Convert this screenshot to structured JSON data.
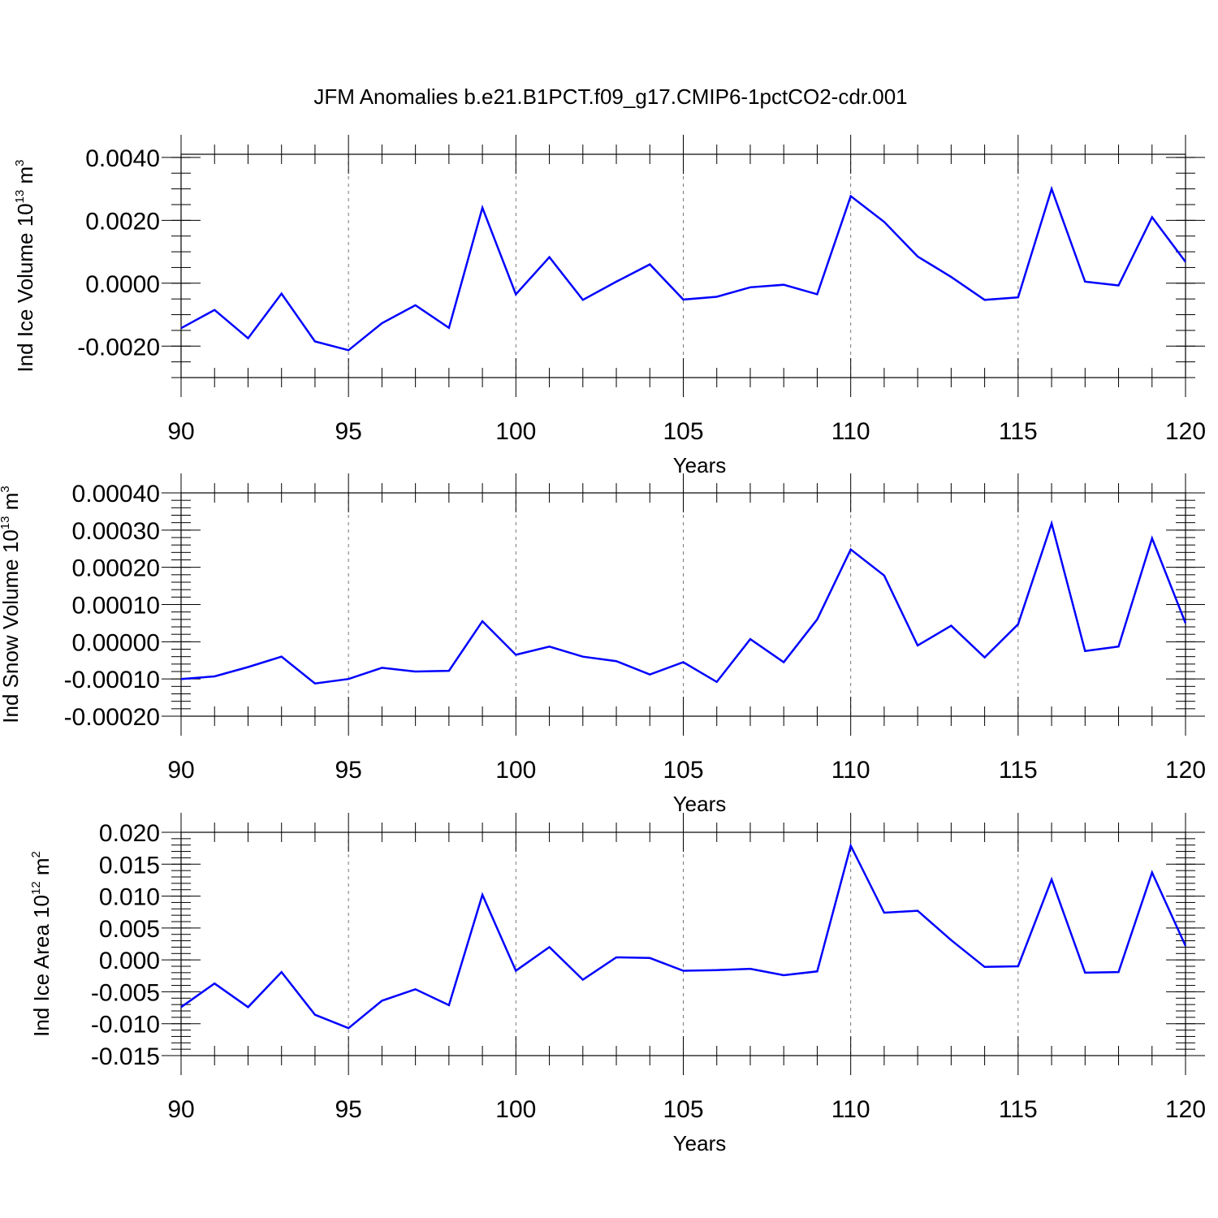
{
  "chart_data": [
    {
      "type": "line",
      "title": "JFM Anomalies b.e21.B1PCT.f09_g17.CMIP6-1pctCO2-cdr.001",
      "xlabel": "Years",
      "ylabel": "Ind Ice Volume 10",
      "ylabel_exp": "13",
      "ylabel_unit": " m",
      "ylabel_unit_exp": "3",
      "xlim": [
        90,
        120
      ],
      "ylim": [
        -0.003,
        0.0041
      ],
      "x": [
        90,
        91,
        92,
        93,
        94,
        95,
        96,
        97,
        98,
        99,
        100,
        101,
        102,
        103,
        104,
        105,
        106,
        107,
        108,
        109,
        110,
        111,
        112,
        113,
        114,
        115,
        116,
        117,
        118,
        119,
        120
      ],
      "y": [
        -0.00143,
        -0.00085,
        -0.00175,
        -0.00033,
        -0.00185,
        -0.00213,
        -0.00127,
        -0.0007,
        -0.00142,
        0.0024,
        -0.00035,
        0.00083,
        -0.00053,
        5e-05,
        0.0006,
        -0.00052,
        -0.00043,
        -0.00013,
        -5e-05,
        -0.00035,
        0.00277,
        0.00195,
        0.00085,
        0.0002,
        -0.00053,
        -0.00045,
        0.003,
        5e-05,
        -7e-05,
        0.0021,
        0.00068
      ],
      "series_color": "#0000ff",
      "xticks": [
        "90",
        "95",
        "100",
        "105",
        "110",
        "115",
        "120"
      ],
      "yticks": [
        "0.0040",
        "0.0020",
        "0.0000",
        "-0.0020"
      ]
    },
    {
      "type": "line",
      "xlabel": "Years",
      "ylabel": "Ind Snow Volume 10",
      "ylabel_exp": "13",
      "ylabel_unit": " m",
      "ylabel_unit_exp": "3",
      "xlim": [
        90,
        120
      ],
      "ylim": [
        -0.0002,
        0.0004
      ],
      "x": [
        90,
        91,
        92,
        93,
        94,
        95,
        96,
        97,
        98,
        99,
        100,
        101,
        102,
        103,
        104,
        105,
        106,
        107,
        108,
        109,
        110,
        111,
        112,
        113,
        114,
        115,
        116,
        117,
        118,
        119,
        120
      ],
      "y": [
        -0.0001,
        -9.3e-05,
        -6.8e-05,
        -4e-05,
        -0.000112,
        -0.0001,
        -7e-05,
        -8e-05,
        -7.8e-05,
        5.5e-05,
        -3.5e-05,
        -1.3e-05,
        -4e-05,
        -5.2e-05,
        -8.8e-05,
        -5.5e-05,
        -0.000108,
        7e-06,
        -5.5e-05,
        6e-05,
        0.000248,
        0.000178,
        -1e-05,
        4.3e-05,
        -4.2e-05,
        4.7e-05,
        0.000318,
        -2.5e-05,
        -1.3e-05,
        0.000278,
        5e-05
      ],
      "series_color": "#0000ff",
      "xticks": [
        "90",
        "95",
        "100",
        "105",
        "110",
        "115",
        "120"
      ],
      "yticks": [
        "0.00040",
        "0.00030",
        "0.00020",
        "0.00010",
        "0.00000",
        "-0.00010",
        "-0.00020"
      ]
    },
    {
      "type": "line",
      "xlabel": "Years",
      "ylabel": "Ind Ice Area 10",
      "ylabel_exp": "12",
      "ylabel_unit": " m",
      "ylabel_unit_exp": "2",
      "xlim": [
        90,
        120
      ],
      "ylim": [
        -0.015,
        0.02
      ],
      "x": [
        90,
        91,
        92,
        93,
        94,
        95,
        96,
        97,
        98,
        99,
        100,
        101,
        102,
        103,
        104,
        105,
        106,
        107,
        108,
        109,
        110,
        111,
        112,
        113,
        114,
        115,
        116,
        117,
        118,
        119,
        120
      ],
      "y": [
        -0.0074,
        -0.0037,
        -0.0074,
        -0.0019,
        -0.0086,
        -0.0107,
        -0.0064,
        -0.0046,
        -0.0071,
        0.0102,
        -0.0017,
        0.002,
        -0.0031,
        0.0004,
        0.0003,
        -0.0017,
        -0.0016,
        -0.0014,
        -0.0024,
        -0.0018,
        0.0179,
        0.0074,
        0.0077,
        0.0031,
        -0.0011,
        -0.001,
        0.0126,
        -0.002,
        -0.0019,
        0.0137,
        0.0022
      ],
      "series_color": "#0000ff",
      "xticks": [
        "90",
        "95",
        "100",
        "105",
        "110",
        "115",
        "120"
      ],
      "yticks": [
        "0.020",
        "0.015",
        "0.010",
        "0.005",
        "0.000",
        "-0.005",
        "-0.010",
        "-0.015"
      ]
    }
  ]
}
